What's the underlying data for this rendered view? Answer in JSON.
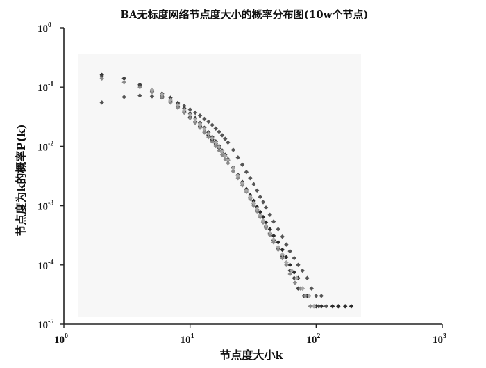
{
  "chart_data": {
    "type": "scatter",
    "title": "BA无标度网络节点度大小的概率分布图(10w个节点)",
    "xlabel": "节点度大小k",
    "ylabel": "节点度为k的概率P(k)",
    "x_scale": "log",
    "y_scale": "log",
    "xlim": [
      1,
      1000
    ],
    "ylim": [
      1e-05,
      1
    ],
    "grid": false,
    "x_ticks": [
      {
        "base": "10",
        "exp": "0",
        "value": 1
      },
      {
        "base": "10",
        "exp": "1",
        "value": 10
      },
      {
        "base": "10",
        "exp": "2",
        "value": 100
      },
      {
        "base": "10",
        "exp": "3",
        "value": 1000
      }
    ],
    "y_ticks": [
      {
        "base": "10",
        "exp": "0",
        "value": 1
      },
      {
        "base": "10",
        "exp": "-1",
        "value": 0.1
      },
      {
        "base": "10",
        "exp": "-2",
        "value": 0.01
      },
      {
        "base": "10",
        "exp": "-3",
        "value": 0.001
      },
      {
        "base": "10",
        "exp": "-4",
        "value": 0.0001
      },
      {
        "base": "10",
        "exp": "-5",
        "value": 1e-05
      }
    ],
    "series": [
      {
        "color": "#2b2b2b",
        "points": [
          [
            2,
            0.16
          ],
          [
            3,
            0.14
          ],
          [
            4,
            0.105
          ],
          [
            5,
            0.085
          ],
          [
            6,
            0.07
          ],
          [
            7,
            0.057
          ],
          [
            8,
            0.046
          ],
          [
            9,
            0.038
          ],
          [
            10,
            0.031
          ],
          [
            11,
            0.026
          ],
          [
            12,
            0.022
          ],
          [
            13,
            0.018
          ],
          [
            14,
            0.0155
          ],
          [
            15,
            0.013
          ],
          [
            16,
            0.011
          ],
          [
            17,
            0.0094
          ],
          [
            18,
            0.008
          ],
          [
            19,
            0.0068
          ],
          [
            20,
            0.0058
          ],
          [
            22,
            0.0043
          ],
          [
            24,
            0.0033
          ],
          [
            26,
            0.0025
          ],
          [
            28,
            0.0019
          ],
          [
            30,
            0.0015
          ],
          [
            32,
            0.0012
          ],
          [
            34,
            0.00095
          ],
          [
            36,
            0.00078
          ],
          [
            38,
            0.00064
          ],
          [
            40,
            0.00052
          ],
          [
            43,
            0.0004
          ],
          [
            46,
            0.00031
          ],
          [
            50,
            0.00024
          ],
          [
            54,
            0.00018
          ],
          [
            58,
            0.000135
          ],
          [
            62,
            0.0001
          ],
          [
            67,
            7.5e-05
          ],
          [
            72,
            6e-05
          ],
          [
            78,
            4e-05
          ],
          [
            85,
            3e-05
          ],
          [
            90,
            2e-05
          ],
          [
            100,
            2e-05
          ],
          [
            110,
            2e-05
          ],
          [
            120,
            2e-05
          ],
          [
            135,
            2e-05
          ],
          [
            150,
            2e-05
          ],
          [
            170,
            2e-05
          ],
          [
            190,
            2e-05
          ]
        ]
      },
      {
        "color": "#555555",
        "points": [
          [
            2,
            0.055
          ],
          [
            3,
            0.068
          ],
          [
            4,
            0.072
          ],
          [
            5,
            0.07
          ],
          [
            6,
            0.066
          ],
          [
            7,
            0.06
          ],
          [
            8,
            0.054
          ],
          [
            9,
            0.048
          ],
          [
            10,
            0.042
          ],
          [
            11,
            0.037
          ],
          [
            12,
            0.033
          ],
          [
            13,
            0.029
          ],
          [
            14,
            0.026
          ],
          [
            15,
            0.023
          ],
          [
            16,
            0.02
          ],
          [
            17,
            0.0176
          ],
          [
            18,
            0.0154
          ],
          [
            19,
            0.0134
          ],
          [
            20,
            0.0116
          ],
          [
            22,
            0.0087
          ],
          [
            24,
            0.0065
          ],
          [
            26,
            0.0049
          ],
          [
            28,
            0.0037
          ],
          [
            30,
            0.0029
          ],
          [
            32,
            0.0023
          ],
          [
            34,
            0.0018
          ],
          [
            36,
            0.0014
          ],
          [
            38,
            0.00115
          ],
          [
            40,
            0.00093
          ],
          [
            43,
            0.0007
          ],
          [
            46,
            0.00054
          ],
          [
            50,
            0.0004
          ],
          [
            54,
            0.0003
          ],
          [
            58,
            0.00022
          ],
          [
            62,
            0.00017
          ],
          [
            67,
            0.00013
          ],
          [
            72,
            0.0001
          ],
          [
            78,
            8e-05
          ],
          [
            85,
            6e-05
          ],
          [
            92,
            4e-05
          ],
          [
            100,
            3e-05
          ],
          [
            110,
            3e-05
          ],
          [
            120,
            2e-05
          ]
        ]
      },
      {
        "color": "#444444",
        "points": [
          [
            2,
            0.15
          ],
          [
            3,
            0.14
          ],
          [
            4,
            0.11
          ],
          [
            5,
            0.09
          ],
          [
            6,
            0.078
          ],
          [
            7,
            0.066
          ],
          [
            8,
            0.054
          ],
          [
            9,
            0.044
          ],
          [
            10,
            0.036
          ],
          [
            11,
            0.03
          ],
          [
            12,
            0.0248
          ],
          [
            13,
            0.0206
          ],
          [
            14,
            0.0172
          ],
          [
            15,
            0.0144
          ],
          [
            16,
            0.0121
          ],
          [
            17,
            0.0101
          ],
          [
            18,
            0.0085
          ],
          [
            19,
            0.0072
          ],
          [
            20,
            0.0061
          ],
          [
            22,
            0.0044
          ],
          [
            24,
            0.0032
          ],
          [
            26,
            0.0024
          ],
          [
            28,
            0.0018
          ],
          [
            30,
            0.00138
          ],
          [
            32,
            0.00108
          ],
          [
            34,
            0.00085
          ],
          [
            36,
            0.00068
          ],
          [
            38,
            0.00055
          ],
          [
            40,
            0.00045
          ],
          [
            43,
            0.00034
          ],
          [
            46,
            0.00026
          ],
          [
            50,
            0.00019
          ],
          [
            54,
            0.00014
          ],
          [
            58,
            0.00011
          ],
          [
            62,
            8e-05
          ],
          [
            67,
            6e-05
          ],
          [
            72,
            4e-05
          ],
          [
            80,
            3e-05
          ],
          [
            88,
            3e-05
          ],
          [
            96,
            2e-05
          ],
          [
            105,
            2e-05
          ]
        ]
      },
      {
        "color": "#8a8a8a",
        "points": [
          [
            2,
            0.14
          ],
          [
            3,
            0.12
          ],
          [
            4,
            0.1
          ],
          [
            5,
            0.083
          ],
          [
            6,
            0.068
          ],
          [
            7,
            0.055
          ],
          [
            8,
            0.045
          ],
          [
            9,
            0.037
          ],
          [
            10,
            0.03
          ],
          [
            11,
            0.025
          ],
          [
            12,
            0.0206
          ],
          [
            13,
            0.0171
          ],
          [
            14,
            0.0143
          ],
          [
            15,
            0.012
          ],
          [
            16,
            0.0101
          ],
          [
            17,
            0.0085
          ],
          [
            18,
            0.0072
          ],
          [
            19,
            0.0061
          ],
          [
            20,
            0.0052
          ],
          [
            22,
            0.0038
          ],
          [
            24,
            0.0029
          ],
          [
            26,
            0.0022
          ],
          [
            28,
            0.0017
          ],
          [
            30,
            0.0013
          ],
          [
            32,
            0.001
          ],
          [
            34,
            0.0008
          ],
          [
            36,
            0.00064
          ],
          [
            38,
            0.00052
          ],
          [
            40,
            0.00042
          ],
          [
            43,
            0.00032
          ],
          [
            46,
            0.00024
          ],
          [
            50,
            0.00018
          ],
          [
            54,
            0.00013
          ],
          [
            58,
            0.0001
          ],
          [
            62,
            7e-05
          ],
          [
            68,
            5e-05
          ],
          [
            75,
            4e-05
          ],
          [
            82,
            3e-05
          ],
          [
            90,
            2e-05
          ]
        ]
      },
      {
        "color": "#a8a8a8",
        "points": [
          [
            5,
            0.09
          ],
          [
            6,
            0.075
          ],
          [
            7,
            0.06
          ],
          [
            8,
            0.05
          ],
          [
            9,
            0.041
          ],
          [
            10,
            0.034
          ],
          [
            11,
            0.028
          ],
          [
            12,
            0.0234
          ],
          [
            13,
            0.0195
          ],
          [
            14,
            0.0163
          ],
          [
            15,
            0.0137
          ],
          [
            16,
            0.0115
          ],
          [
            17,
            0.0097
          ],
          [
            18,
            0.0082
          ],
          [
            19,
            0.0069
          ],
          [
            20,
            0.0059
          ],
          [
            22,
            0.0043
          ],
          [
            24,
            0.0032
          ],
          [
            26,
            0.0024
          ],
          [
            28,
            0.0018
          ],
          [
            30,
            0.0014
          ],
          [
            32,
            0.0011
          ],
          [
            34,
            0.00087
          ],
          [
            36,
            0.00069
          ],
          [
            38,
            0.00056
          ],
          [
            40,
            0.00046
          ],
          [
            43,
            0.00035
          ],
          [
            46,
            0.00027
          ],
          [
            50,
            0.0002
          ],
          [
            54,
            0.00015
          ],
          [
            58,
            0.00011
          ],
          [
            64,
            8e-05
          ],
          [
            70,
            6e-05
          ],
          [
            78,
            4e-05
          ],
          [
            88,
            3e-05
          ],
          [
            96,
            2e-05
          ]
        ]
      }
    ]
  }
}
